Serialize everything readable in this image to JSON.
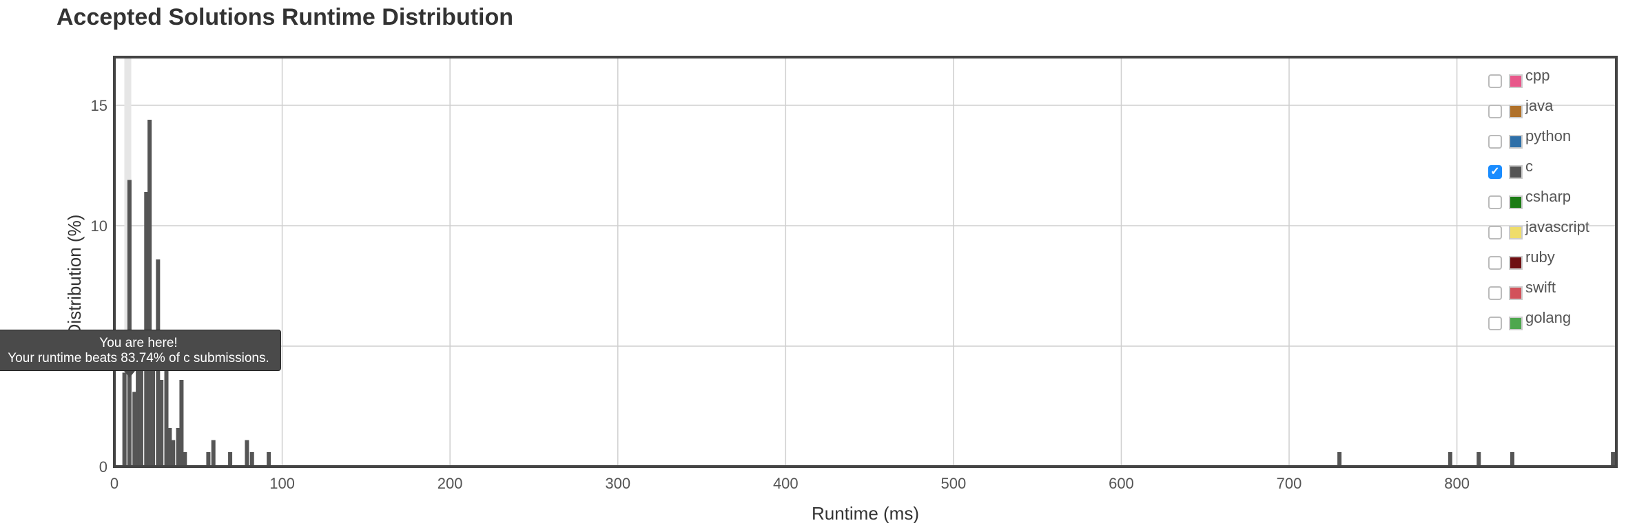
{
  "title": "Accepted Solutions Runtime Distribution",
  "tooltip": {
    "line1": "You are here!",
    "line2": "Your runtime beats 83.74% of c submissions."
  },
  "legend": [
    {
      "label": "cpp",
      "color": "#e8578a",
      "checked": false
    },
    {
      "label": "java",
      "color": "#b0712a",
      "checked": false
    },
    {
      "label": "python",
      "color": "#2e6fa8",
      "checked": false
    },
    {
      "label": "c",
      "color": "#555555",
      "checked": true
    },
    {
      "label": "csharp",
      "color": "#1c7c15",
      "checked": false
    },
    {
      "label": "javascript",
      "color": "#efdd6a",
      "checked": false
    },
    {
      "label": "ruby",
      "color": "#6f0f12",
      "checked": false
    },
    {
      "label": "swift",
      "color": "#d2515a",
      "checked": false
    },
    {
      "label": "golang",
      "color": "#4ea74e",
      "checked": false
    }
  ],
  "chart_data": {
    "type": "bar",
    "title": "Accepted Solutions Runtime Distribution",
    "xlabel": "Runtime (ms)",
    "ylabel": "Distribution (%)",
    "xlim": [
      0,
      895
    ],
    "ylim": [
      0,
      17
    ],
    "xticks": [
      0,
      100,
      200,
      300,
      400,
      500,
      600,
      700,
      800
    ],
    "yticks": [
      0,
      5,
      10,
      15
    ],
    "ytick_labels": [
      "0",
      "",
      "10",
      "15"
    ],
    "grid": true,
    "legend_position": "top-right",
    "highlight_x": 8,
    "series": [
      {
        "name": "c",
        "color": "#555555",
        "x": [
          6,
          9,
          12,
          14,
          16,
          19,
          21,
          23,
          26,
          28,
          31,
          33,
          35,
          38,
          40,
          42,
          56,
          59,
          69,
          79,
          82,
          92,
          730,
          796,
          813,
          833,
          893
        ],
        "values": [
          3.9,
          11.9,
          3.1,
          4.3,
          5.4,
          11.4,
          14.4,
          5.6,
          8.6,
          3.6,
          4.3,
          1.6,
          1.1,
          1.6,
          3.6,
          0.6,
          0.6,
          1.1,
          0.6,
          1.1,
          0.6,
          0.6,
          0.6,
          0.6,
          0.6,
          0.6,
          0.6
        ]
      }
    ]
  }
}
